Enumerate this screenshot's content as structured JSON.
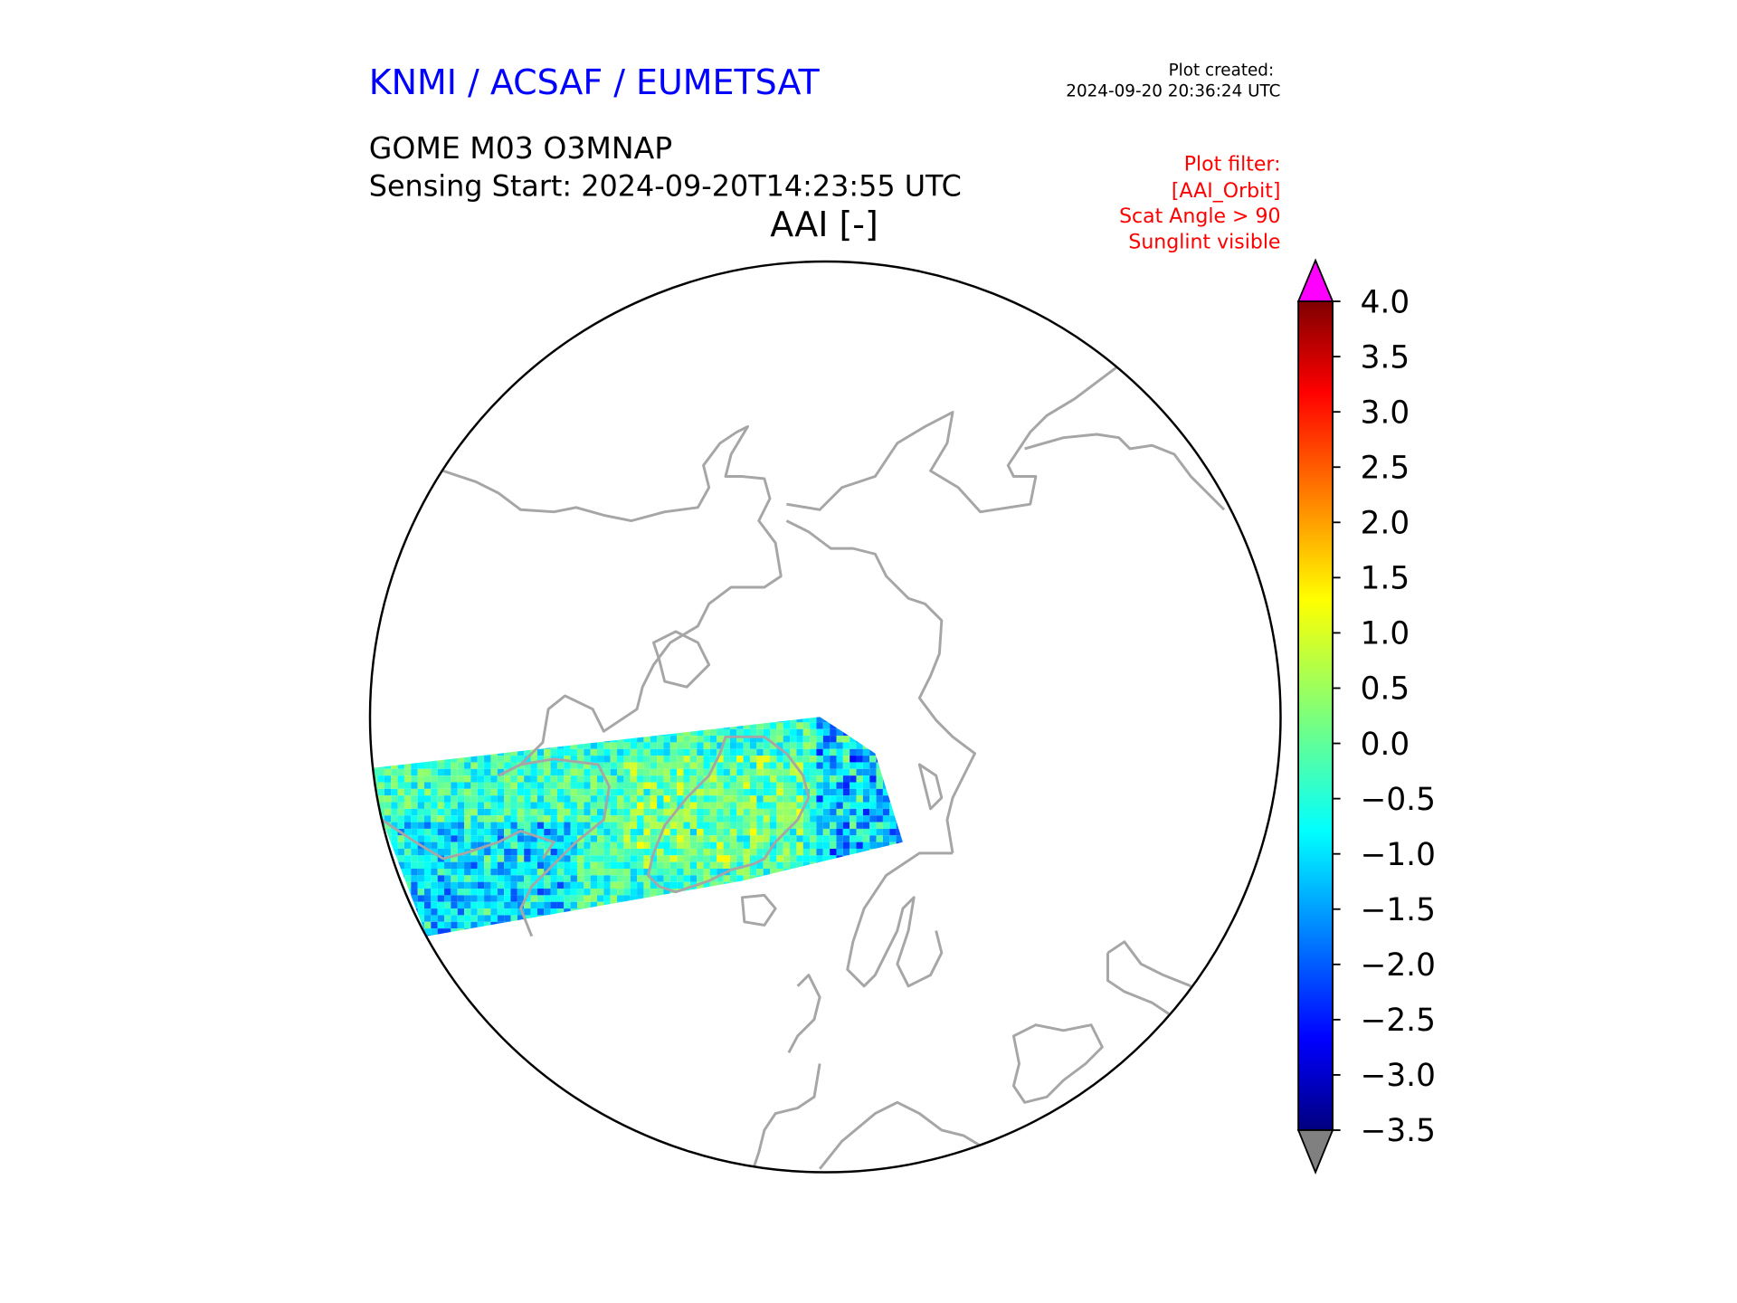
{
  "header": {
    "org": "KNMI / ACSAF / EUMETSAT",
    "created_label": "Plot created:",
    "created_time": "2024-09-20 20:36:24 UTC",
    "product": "GOME M03 O3MNAP",
    "sensing_start": "Sensing Start: 2024-09-20T14:23:55 UTC",
    "filter_lines": [
      "Plot filter:",
      "[AAI_Orbit]",
      "Scat Angle > 90",
      "Sunglint visible"
    ]
  },
  "colors": {
    "org": "#0000ff",
    "filter": "#ff0000",
    "coast": "#a6a6a6",
    "over": "#ff00ff",
    "under": "#808080"
  },
  "chart_data": {
    "type": "heatmap",
    "title": "AAI [-]",
    "projection": "north polar stereographic",
    "colormap": "jet",
    "vmin": -3.5,
    "vmax": 4.0,
    "extend": "both",
    "colorbar_ticks": [
      "4.0",
      "3.5",
      "3.0",
      "2.5",
      "2.0",
      "1.5",
      "1.0",
      "0.5",
      "0.0",
      "−0.5",
      "−1.0",
      "−1.5",
      "−2.0",
      "−2.5",
      "−3.0",
      "−3.5"
    ],
    "tick_values": [
      4.0,
      3.5,
      3.0,
      2.5,
      2.0,
      1.5,
      1.0,
      0.5,
      0.0,
      -0.5,
      -1.0,
      -1.5,
      -2.0,
      -2.5,
      -3.0,
      -3.5
    ],
    "swath_typical_range": [
      -2.5,
      1.5
    ],
    "swath_dominant_value": -0.3
  }
}
